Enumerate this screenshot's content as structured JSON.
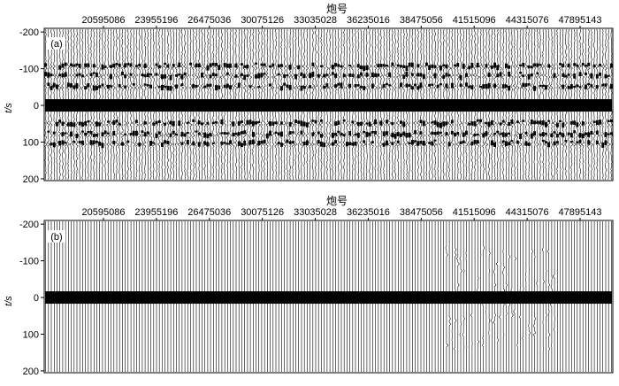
{
  "chart_data": [
    {
      "type": "seismic-gather",
      "panel_label": "(a)",
      "xlabel": "炮号",
      "ylabel": "t/s",
      "x_ticks": [
        "20595086",
        "23955196",
        "26475036",
        "30075126",
        "33035028",
        "36235016",
        "38475056",
        "41515096",
        "44315076",
        "47895143"
      ],
      "y_ticks": [
        -200,
        -100,
        0,
        100,
        200
      ],
      "ylim": [
        -210,
        205
      ],
      "trace_count": 200,
      "reflection_times": [
        -105,
        -80,
        -50,
        0,
        50,
        80,
        105
      ],
      "dense_event_time": 0,
      "noise_level": "high",
      "description_of_content": "wiggle traces"
    },
    {
      "type": "seismic-gather",
      "panel_label": "(b)",
      "xlabel": "炮号",
      "ylabel": "t/s",
      "x_ticks": [
        "20595086",
        "23955196",
        "26475036",
        "30075126",
        "33035028",
        "36235016",
        "38475056",
        "41515096",
        "44315076",
        "47895143"
      ],
      "y_ticks": [
        -200,
        -100,
        0,
        100,
        200
      ],
      "ylim": [
        -210,
        205
      ],
      "trace_count": 200,
      "reflection_times": [
        0
      ],
      "dense_event_time": 0,
      "noise_level": "low",
      "description_of_content": "wiggle traces"
    }
  ],
  "colors": {
    "trace": "#000000",
    "background": "#ffffff",
    "axis": "#000000"
  }
}
